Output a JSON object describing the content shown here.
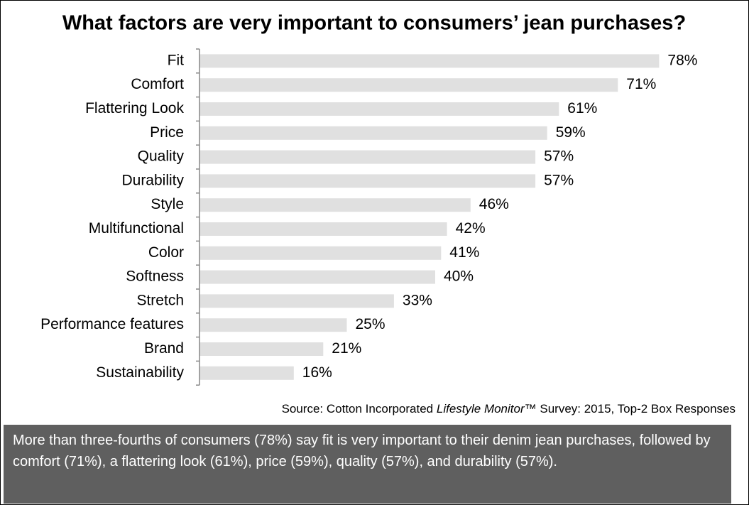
{
  "chart_data": {
    "type": "bar",
    "title": "What factors are very important to consumers’ jean purchases?",
    "categories": [
      "Fit",
      "Comfort",
      "Flattering Look",
      "Price",
      "Quality",
      "Durability",
      "Style",
      "Multifunctional",
      "Color",
      "Softness",
      "Stretch",
      "Performance features",
      "Brand",
      "Sustainability"
    ],
    "values": [
      78,
      71,
      61,
      59,
      57,
      57,
      46,
      42,
      41,
      40,
      33,
      25,
      21,
      16
    ],
    "value_labels": [
      "78%",
      "71%",
      "61%",
      "59%",
      "57%",
      "57%",
      "46%",
      "42%",
      "41%",
      "40%",
      "33%",
      "25%",
      "21%",
      "16%"
    ],
    "color": "#e0e0e0",
    "source": {
      "prefix": "Source: Cotton Incorporated ",
      "italic": "Lifestyle Monitor",
      "suffix": "™ Survey: 2015, Top-2 Box Responses"
    }
  },
  "summary": "More than three-fourths of consumers (78%) say fit is very important to their denim jean purchases, followed by comfort (71%), a flattering look (61%), price (59%), quality (57%), and durability (57%)."
}
